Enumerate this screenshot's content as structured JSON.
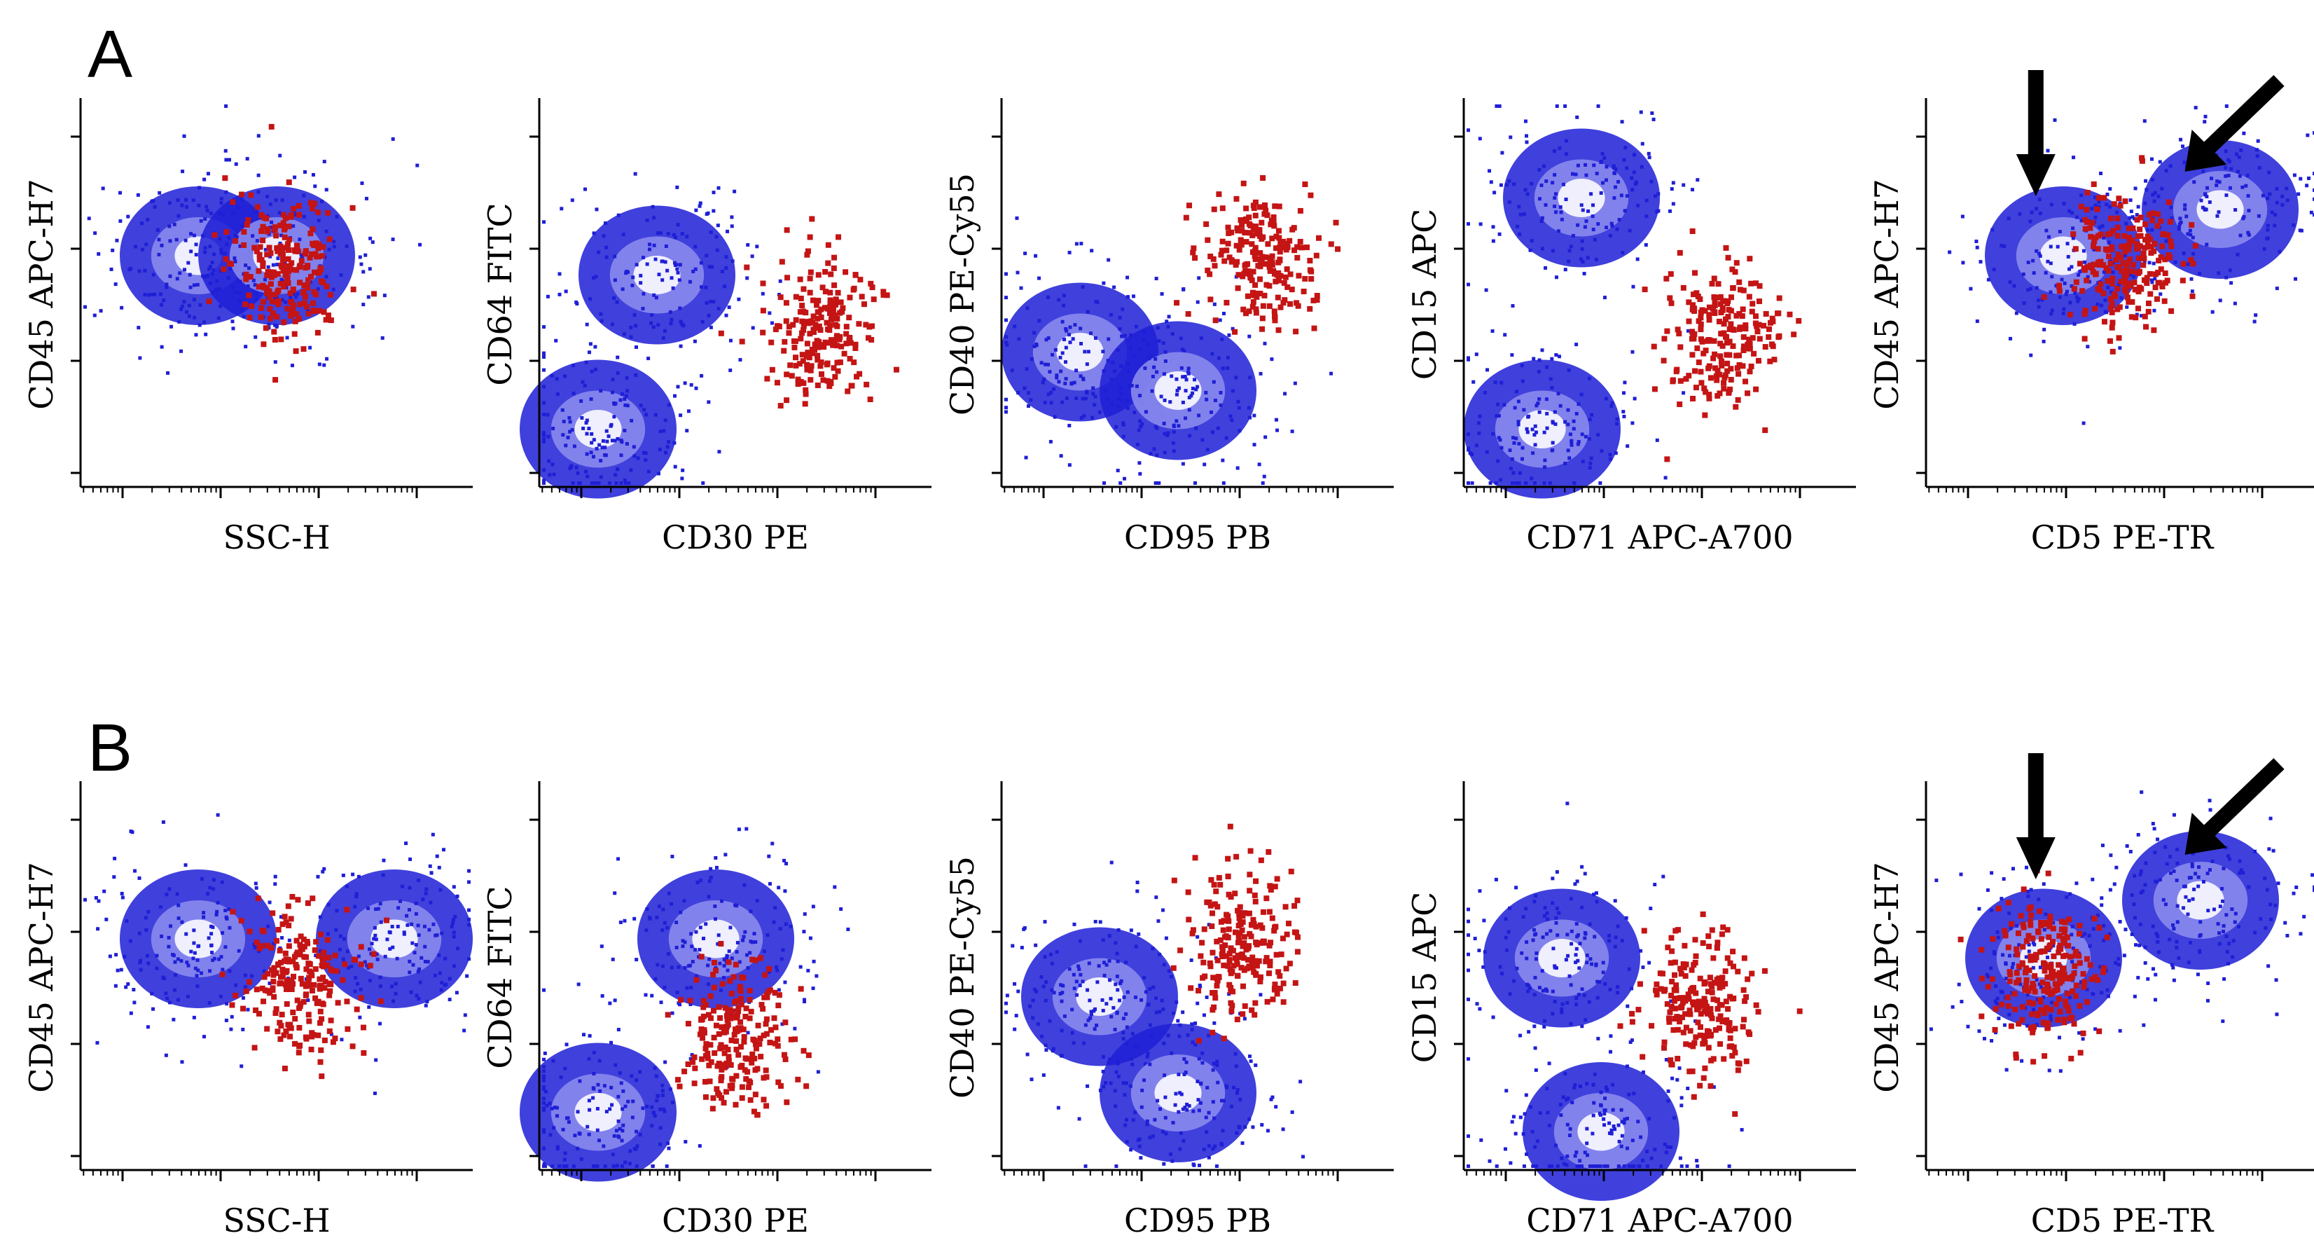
{
  "figure": {
    "colors": {
      "background_population": "#1f1fd6",
      "highlight_population": "#c41414",
      "axis": "#000000",
      "arrow": "#000000"
    },
    "arrow_annotation": "arrow-icon"
  },
  "chart_data": [
    {
      "type": "scatter",
      "panel": "A",
      "plots": [
        {
          "xlabel": "SSC-H",
          "ylabel": "CD45 APC-H7",
          "background_clusters": [
            [
              0.3,
              0.6
            ],
            [
              0.5,
              0.6
            ]
          ],
          "highlight_center": [
            0.52,
            0.58
          ],
          "arrows": 0
        },
        {
          "xlabel": "CD30 PE",
          "ylabel": "CD64 FITC",
          "background_clusters": [
            [
              0.15,
              0.15
            ],
            [
              0.3,
              0.55
            ]
          ],
          "highlight_center": [
            0.72,
            0.42
          ],
          "arrows": 0
        },
        {
          "xlabel": "CD95 PB",
          "ylabel": "CD40 PE-Cy55",
          "background_clusters": [
            [
              0.2,
              0.35
            ],
            [
              0.45,
              0.25
            ]
          ],
          "highlight_center": [
            0.65,
            0.6
          ],
          "arrows": 0
        },
        {
          "xlabel": "CD71 APC-A700",
          "ylabel": "CD15 APC",
          "background_clusters": [
            [
              0.3,
              0.75
            ],
            [
              0.2,
              0.15
            ]
          ],
          "highlight_center": [
            0.65,
            0.4
          ],
          "arrows": 0
        },
        {
          "xlabel": "CD5 PE-TR",
          "ylabel": "CD45 APC-H7",
          "background_clusters": [
            [
              0.35,
              0.6
            ],
            [
              0.75,
              0.72
            ]
          ],
          "highlight_center": [
            0.5,
            0.58
          ],
          "arrows": 2
        }
      ]
    },
    {
      "type": "scatter",
      "panel": "B",
      "plots": [
        {
          "xlabel": "SSC-H",
          "ylabel": "CD45 APC-H7",
          "background_clusters": [
            [
              0.3,
              0.6
            ],
            [
              0.8,
              0.6
            ]
          ],
          "highlight_center": [
            0.55,
            0.5
          ],
          "arrows": 0
        },
        {
          "xlabel": "CD30 PE",
          "ylabel": "CD64 FITC",
          "background_clusters": [
            [
              0.15,
              0.15
            ],
            [
              0.45,
              0.6
            ]
          ],
          "highlight_center": [
            0.5,
            0.35
          ],
          "arrows": 0
        },
        {
          "xlabel": "CD95 PB",
          "ylabel": "CD40 PE-Cy55",
          "background_clusters": [
            [
              0.25,
              0.45
            ],
            [
              0.45,
              0.2
            ]
          ],
          "highlight_center": [
            0.6,
            0.6
          ],
          "arrows": 0
        },
        {
          "xlabel": "CD71 APC-A700",
          "ylabel": "CD15 APC",
          "background_clusters": [
            [
              0.25,
              0.55
            ],
            [
              0.35,
              0.1
            ]
          ],
          "highlight_center": [
            0.6,
            0.45
          ],
          "arrows": 0
        },
        {
          "xlabel": "CD5 PE-TR",
          "ylabel": "CD45 APC-H7",
          "background_clusters": [
            [
              0.3,
              0.55
            ],
            [
              0.7,
              0.7
            ]
          ],
          "highlight_center": [
            0.3,
            0.52
          ],
          "arrows": 2
        }
      ]
    }
  ]
}
